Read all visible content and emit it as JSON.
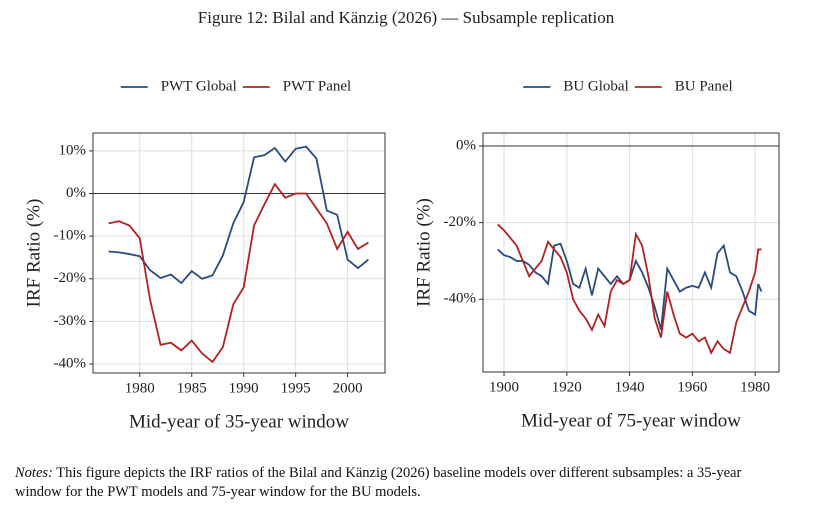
{
  "title": "Figure 12: Bilal and Känzig (2026) — Subsample replication",
  "notes": {
    "label": "Notes:",
    "text": "This figure depicts the IRF ratios of the Bilal and Känzig (2026) baseline models over different subsamples: a 35-year window for the PWT models and 75-year window for the BU models."
  },
  "chart_data": [
    {
      "type": "line",
      "xlabel": "Mid-year of 35-year window",
      "ylabel": "IRF Ratio (%)",
      "x": [
        1977,
        1978,
        1979,
        1980,
        1981,
        1982,
        1983,
        1984,
        1985,
        1986,
        1987,
        1988,
        1989,
        1990,
        1991,
        1992,
        1993,
        1994,
        1995,
        1996,
        1997,
        1998,
        1999,
        2000,
        2001,
        2002
      ],
      "series": [
        {
          "name": "PWT Global",
          "color": "#2b4c7e",
          "values": [
            -13.6,
            -13.8,
            -14.2,
            -14.7,
            -18,
            -19.8,
            -19,
            -21,
            -18.2,
            -20,
            -19.2,
            -14.5,
            -7,
            -2,
            8.5,
            9,
            10.7,
            7.5,
            10.5,
            11,
            8.2,
            -4,
            -5,
            -15.5,
            -17.5,
            -15.5
          ]
        },
        {
          "name": "PWT Panel",
          "color": "#b22222",
          "values": [
            -7,
            -6.5,
            -7.5,
            -10.5,
            -25,
            -35.5,
            -35,
            -36.8,
            -34.5,
            -37.5,
            -39.5,
            -36,
            -26,
            -22,
            -7.5,
            -2.5,
            2.2,
            -1,
            0,
            0,
            -3.5,
            -7,
            -13,
            -9,
            -13,
            -11.5
          ]
        }
      ],
      "xlim": [
        1975.5,
        2003.6
      ],
      "ylim": [
        -42.1,
        14.2
      ],
      "xticks": [
        1980,
        1985,
        1990,
        1995,
        2000
      ],
      "yticks": [
        {
          "value": 10,
          "label": "10%"
        },
        {
          "value": 0,
          "label": "0%"
        },
        {
          "value": -10,
          "label": "-10%"
        },
        {
          "value": -20,
          "label": "-20%"
        },
        {
          "value": -30,
          "label": "-30%"
        },
        {
          "value": -40,
          "label": "-40%"
        }
      ],
      "grid": true,
      "legend": "top"
    },
    {
      "type": "line",
      "xlabel": "Mid-year of 75-year window",
      "ylabel": "IRF Ratio (%)",
      "x": [
        1898,
        1900,
        1902,
        1904,
        1906,
        1908,
        1910,
        1912,
        1914,
        1916,
        1918,
        1920,
        1922,
        1924,
        1926,
        1928,
        1930,
        1932,
        1934,
        1936,
        1938,
        1940,
        1942,
        1944,
        1946,
        1948,
        1950,
        1952,
        1954,
        1956,
        1958,
        1960,
        1962,
        1964,
        1966,
        1968,
        1970,
        1972,
        1974,
        1976,
        1978,
        1980,
        1981,
        1982
      ],
      "series": [
        {
          "name": "BU Global",
          "color": "#2b4c7e",
          "values": [
            -27,
            -28.5,
            -29,
            -30,
            -30,
            -31,
            -33,
            -34,
            -36,
            -26,
            -25.5,
            -30,
            -36,
            -37,
            -32,
            -39,
            -32,
            -34,
            -36,
            -34,
            -36,
            -35,
            -30,
            -33,
            -37,
            -42,
            -48,
            -32,
            -35,
            -38,
            -37,
            -36.5,
            -37,
            -33,
            -37,
            -28,
            -26,
            -33,
            -34,
            -38,
            -43,
            -44,
            -36,
            -38
          ]
        },
        {
          "name": "BU Panel",
          "color": "#b22222",
          "values": [
            -20.5,
            -22,
            -24,
            -26,
            -30,
            -34,
            -32,
            -30,
            -25,
            -27,
            -29,
            -33,
            -40,
            -43,
            -45,
            -48,
            -44,
            -47,
            -38,
            -35,
            -36,
            -35,
            -23,
            -26,
            -34,
            -45,
            -50,
            -38,
            -44,
            -49,
            -50,
            -49,
            -51,
            -50,
            -54,
            -51,
            -53,
            -54,
            -46,
            -42,
            -38,
            -33,
            -27,
            -27
          ]
        }
      ],
      "xlim": [
        1893.3,
        1987.6
      ],
      "ylim": [
        -59,
        3.4
      ],
      "xticks": [
        1900,
        1920,
        1940,
        1960,
        1980
      ],
      "yticks": [
        {
          "value": 0,
          "label": "0%"
        },
        {
          "value": -20,
          "label": "-20%"
        },
        {
          "value": -40,
          "label": "-40%"
        }
      ],
      "grid": true,
      "legend": "top"
    }
  ]
}
